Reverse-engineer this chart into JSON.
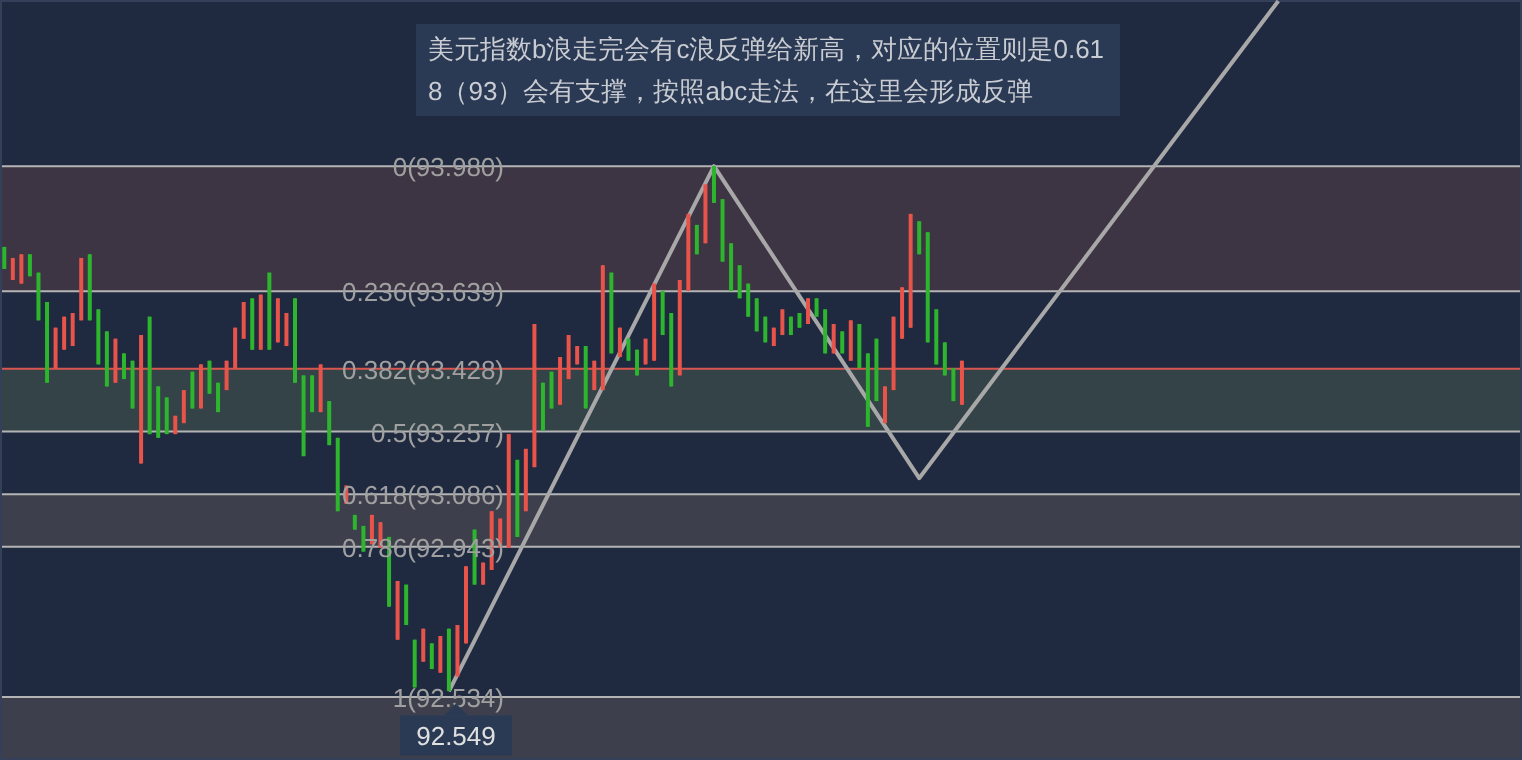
{
  "chart_data": {
    "type": "candlestick",
    "ylim": [
      92.365,
      94.43
    ],
    "categories": [
      null,
      null,
      null,
      null,
      null,
      null,
      null,
      null,
      null,
      null,
      null,
      null,
      null,
      null,
      null,
      null,
      null,
      null,
      null,
      null,
      null,
      null,
      null,
      null,
      null,
      null,
      null,
      null,
      null,
      null,
      null,
      null,
      null,
      null,
      null,
      null,
      null,
      null,
      null,
      null,
      null,
      null,
      null,
      null,
      null,
      null,
      null,
      null,
      null,
      null,
      null,
      null,
      null,
      null,
      null,
      null,
      null,
      null,
      null,
      null,
      null,
      null,
      null,
      null,
      null,
      null,
      null,
      null,
      null,
      null,
      null,
      null,
      null,
      null,
      null,
      null,
      null,
      null,
      null,
      null,
      null,
      null,
      null,
      null,
      null,
      null,
      null,
      null,
      null,
      null,
      null,
      null,
      null,
      null,
      null,
      null,
      null,
      null,
      null,
      null,
      null,
      null,
      null,
      null,
      null,
      null,
      null,
      null,
      null,
      null,
      null,
      null,
      null,
      null,
      null,
      null,
      null,
      null,
      null,
      null,
      null,
      null,
      null,
      null,
      null,
      null,
      null,
      null,
      null,
      null,
      null,
      null,
      null,
      null,
      null,
      null,
      null,
      null,
      null,
      null,
      null,
      null,
      null,
      null,
      null,
      null,
      null,
      null,
      null,
      null,
      null,
      null,
      null,
      null,
      null,
      null,
      null,
      null,
      null,
      null,
      null,
      null,
      null,
      null,
      null,
      null,
      null,
      null,
      null,
      null,
      null,
      null,
      null,
      null,
      null,
      null,
      null,
      null
    ],
    "ohlc": [
      [
        93.76,
        93.76,
        93.7,
        93.7
      ],
      [
        93.67,
        93.73,
        93.67,
        93.73
      ],
      [
        93.66,
        93.74,
        93.66,
        93.74
      ],
      [
        93.74,
        93.74,
        93.68,
        93.68
      ],
      [
        93.69,
        93.69,
        93.56,
        93.56
      ],
      [
        93.61,
        93.61,
        93.39,
        93.39
      ],
      [
        93.43,
        93.54,
        93.43,
        93.54
      ],
      [
        93.48,
        93.57,
        93.48,
        93.57
      ],
      [
        93.49,
        93.58,
        93.49,
        93.58
      ],
      [
        93.56,
        93.73,
        93.56,
        93.73
      ],
      [
        93.74,
        93.74,
        93.56,
        93.56
      ],
      [
        93.59,
        93.59,
        93.44,
        93.44
      ],
      [
        93.53,
        93.53,
        93.38,
        93.38
      ],
      [
        93.39,
        93.51,
        93.39,
        93.51
      ],
      [
        93.47,
        93.47,
        93.4,
        93.4
      ],
      [
        93.45,
        93.45,
        93.32,
        93.32
      ],
      [
        93.17,
        93.52,
        93.17,
        93.52
      ],
      [
        93.57,
        93.57,
        93.25,
        93.25
      ],
      [
        93.38,
        93.38,
        93.24,
        93.24
      ],
      [
        93.35,
        93.35,
        93.25,
        93.25
      ],
      [
        93.25,
        93.3,
        93.25,
        93.3
      ],
      [
        93.28,
        93.37,
        93.28,
        93.37
      ],
      [
        93.42,
        93.42,
        93.32,
        93.32
      ],
      [
        93.32,
        93.44,
        93.32,
        93.44
      ],
      [
        93.45,
        93.45,
        93.36,
        93.36
      ],
      [
        93.39,
        93.39,
        93.31,
        93.31
      ],
      [
        93.37,
        93.45,
        93.37,
        93.45
      ],
      [
        93.43,
        93.54,
        93.43,
        93.54
      ],
      [
        93.51,
        93.61,
        93.51,
        93.61
      ],
      [
        93.62,
        93.62,
        93.48,
        93.48
      ],
      [
        93.48,
        93.63,
        93.48,
        93.63
      ],
      [
        93.69,
        93.69,
        93.48,
        93.48
      ],
      [
        93.5,
        93.62,
        93.5,
        93.62
      ],
      [
        93.49,
        93.58,
        93.49,
        93.58
      ],
      [
        93.62,
        93.62,
        93.39,
        93.39
      ],
      [
        93.41,
        93.41,
        93.19,
        93.19
      ],
      [
        93.41,
        93.41,
        93.31,
        93.31
      ],
      [
        93.31,
        93.44,
        93.31,
        93.44
      ],
      [
        93.34,
        93.34,
        93.22,
        93.22
      ],
      [
        93.24,
        93.24,
        93.04,
        93.04
      ],
      [
        93.06,
        93.11,
        93.06,
        93.11
      ],
      [
        93.03,
        93.03,
        92.99,
        92.99
      ],
      [
        93.0,
        93.0,
        92.93,
        92.93
      ],
      [
        92.95,
        93.03,
        92.95,
        93.03
      ],
      [
        92.94,
        93.01,
        92.94,
        93.01
      ],
      [
        92.97,
        92.97,
        92.78,
        92.78
      ],
      [
        92.69,
        92.85,
        92.69,
        92.85
      ],
      [
        92.84,
        92.84,
        92.73,
        92.73
      ],
      [
        92.69,
        92.69,
        92.56,
        92.56
      ],
      [
        92.63,
        92.72,
        92.63,
        92.72
      ],
      [
        92.68,
        92.68,
        92.61,
        92.61
      ],
      [
        92.6,
        92.7,
        92.6,
        92.7
      ],
      [
        92.72,
        92.72,
        92.55,
        92.55
      ],
      [
        92.59,
        92.73,
        92.59,
        92.73
      ],
      [
        92.68,
        92.89,
        92.68,
        92.89
      ],
      [
        92.99,
        92.99,
        92.84,
        92.84
      ],
      [
        92.84,
        92.9,
        92.84,
        92.9
      ],
      [
        92.88,
        93.04,
        92.88,
        93.04
      ],
      [
        92.94,
        93.02,
        92.94,
        93.02
      ],
      [
        92.94,
        93.25,
        92.94,
        93.25
      ],
      [
        93.18,
        93.18,
        92.97,
        92.97
      ],
      [
        93.04,
        93.21,
        93.04,
        93.21
      ],
      [
        93.16,
        93.55,
        93.16,
        93.55
      ],
      [
        93.39,
        93.39,
        93.26,
        93.26
      ],
      [
        93.42,
        93.42,
        93.32,
        93.32
      ],
      [
        93.33,
        93.46,
        93.33,
        93.46
      ],
      [
        93.4,
        93.52,
        93.4,
        93.52
      ],
      [
        93.44,
        93.49,
        93.44,
        93.49
      ],
      [
        93.49,
        93.49,
        93.32,
        93.32
      ],
      [
        93.37,
        93.45,
        93.37,
        93.45
      ],
      [
        93.37,
        93.71,
        93.37,
        93.71
      ],
      [
        93.69,
        93.69,
        93.47,
        93.47
      ],
      [
        93.46,
        93.54,
        93.46,
        93.54
      ],
      [
        93.51,
        93.51,
        93.45,
        93.45
      ],
      [
        93.48,
        93.48,
        93.41,
        93.41
      ],
      [
        93.44,
        93.51,
        93.44,
        93.51
      ],
      [
        93.45,
        93.66,
        93.45,
        93.66
      ],
      [
        93.64,
        93.64,
        93.52,
        93.52
      ],
      [
        93.58,
        93.58,
        93.38,
        93.38
      ],
      [
        93.41,
        93.67,
        93.41,
        93.67
      ],
      [
        93.64,
        93.85,
        93.64,
        93.85
      ],
      [
        93.82,
        93.82,
        93.74,
        93.74
      ],
      [
        93.77,
        93.93,
        93.77,
        93.93
      ],
      [
        93.98,
        93.98,
        93.88,
        93.88
      ],
      [
        93.89,
        93.89,
        93.72,
        93.72
      ],
      [
        93.77,
        93.77,
        93.64,
        93.64
      ],
      [
        93.71,
        93.71,
        93.62,
        93.62
      ],
      [
        93.66,
        93.66,
        93.57,
        93.57
      ],
      [
        93.62,
        93.62,
        93.53,
        93.53
      ],
      [
        93.57,
        93.57,
        93.5,
        93.5
      ],
      [
        93.49,
        93.54,
        93.49,
        93.54
      ],
      [
        93.52,
        93.59,
        93.52,
        93.59
      ],
      [
        93.57,
        93.57,
        93.52,
        93.52
      ],
      [
        93.58,
        93.58,
        93.54,
        93.54
      ],
      [
        93.55,
        93.62,
        93.55,
        93.62
      ],
      [
        93.62,
        93.62,
        93.57,
        93.57
      ],
      [
        93.59,
        93.59,
        93.47,
        93.47
      ],
      [
        93.47,
        93.55,
        93.47,
        93.55
      ],
      [
        93.53,
        93.53,
        93.47,
        93.47
      ],
      [
        93.45,
        93.56,
        93.45,
        93.56
      ],
      [
        93.55,
        93.55,
        93.43,
        93.43
      ],
      [
        93.47,
        93.47,
        93.27,
        93.27
      ],
      [
        93.51,
        93.51,
        93.34,
        93.34
      ],
      [
        93.28,
        93.38,
        93.28,
        93.38
      ],
      [
        93.37,
        93.57,
        93.37,
        93.57
      ],
      [
        93.51,
        93.65,
        93.51,
        93.65
      ],
      [
        93.54,
        93.85,
        93.54,
        93.85
      ],
      [
        93.83,
        93.83,
        93.74,
        93.74
      ],
      [
        93.8,
        93.8,
        93.5,
        93.5
      ],
      [
        93.59,
        93.59,
        93.44,
        93.44
      ],
      [
        93.5,
        93.5,
        93.41,
        93.41
      ],
      [
        93.43,
        93.43,
        93.34,
        93.34
      ],
      [
        93.33,
        93.45,
        93.33,
        93.45
      ],
      null,
      null,
      null,
      null,
      null,
      null,
      null,
      null,
      null,
      null,
      null,
      null,
      null,
      null,
      null,
      null,
      null,
      null,
      null,
      null,
      null,
      null,
      null,
      null,
      null,
      null,
      null,
      null,
      null,
      null,
      null,
      null,
      null,
      null,
      null,
      null,
      null,
      null,
      null,
      null,
      null,
      null,
      null,
      null,
      null,
      null,
      null,
      null,
      null,
      null,
      null,
      null,
      null,
      null,
      null,
      null,
      null,
      null,
      null,
      null,
      null,
      null,
      null,
      null,
      null
    ],
    "series": [
      {
        "type": "line",
        "color": "#a8a8a8",
        "values": [
          null,
          null,
          null,
          null,
          null,
          null,
          null,
          null,
          null,
          null,
          null,
          null,
          null,
          null,
          null,
          null,
          null,
          null,
          null,
          null,
          null,
          null,
          null,
          null,
          null,
          null,
          null,
          null,
          null,
          null,
          null,
          null,
          null,
          null,
          null,
          null,
          null,
          null,
          null,
          null,
          null,
          null,
          null,
          null,
          null,
          null,
          null,
          null,
          null,
          null,
          null,
          null,
          92.549,
          null,
          null,
          null,
          null,
          null,
          null,
          null,
          null,
          null,
          null,
          null,
          null,
          null,
          null,
          null,
          null,
          null,
          null,
          null,
          null,
          null,
          null,
          null,
          null,
          null,
          null,
          null,
          null,
          null,
          null,
          93.98,
          null,
          null,
          null,
          null,
          null,
          null,
          null,
          null,
          null,
          null,
          null,
          null,
          null,
          null,
          null,
          null,
          null,
          null,
          null,
          null,
          null,
          null,
          null,
          93.13,
          null,
          null,
          null,
          null,
          null,
          null,
          null,
          null,
          null,
          null,
          null,
          null,
          null,
          null,
          null,
          null,
          null,
          null,
          null,
          null,
          null,
          null,
          null,
          null,
          null,
          null,
          null,
          null,
          null,
          null,
          null,
          null,
          null,
          null,
          null,
          null,
          null,
          null,
          null,
          null,
          null,
          94.43,
          null,
          null,
          null,
          null,
          null,
          null,
          null,
          null,
          null,
          null,
          null,
          null,
          null,
          null,
          null,
          null,
          null,
          null,
          null,
          null,
          null,
          null,
          null,
          null,
          null,
          null,
          null,
          null
        ]
      }
    ],
    "bands": [
      {
        "axis": "y",
        "from": 93.639,
        "to": 93.98,
        "color": "#3d3543"
      },
      {
        "axis": "y",
        "from": 93.257,
        "to": 93.428,
        "color": "#344348"
      },
      {
        "axis": "y",
        "from": 92.943,
        "to": 93.086,
        "color": "#3d404c"
      },
      {
        "axis": "y",
        "from": 92.365,
        "to": 92.534,
        "color": "#3d404c"
      }
    ],
    "ref_lines": [
      {
        "axis": "y",
        "value": 93.98,
        "label": "0(93.980)",
        "color": "#b4b4b4"
      },
      {
        "axis": "y",
        "value": 93.639,
        "label": "0.236(93.639)",
        "color": "#b4b4b4"
      },
      {
        "axis": "y",
        "value": 93.428,
        "label": "0.382(93.428)",
        "color": "#d8564f"
      },
      {
        "axis": "y",
        "value": 93.257,
        "label": "0.5(93.257)",
        "color": "#b4b4b4"
      },
      {
        "axis": "y",
        "value": 93.086,
        "label": "0.618(93.086)",
        "color": "#b4b4b4"
      },
      {
        "axis": "y",
        "value": 92.943,
        "label": "0.786(92.943)",
        "color": "#b4b4b4"
      },
      {
        "axis": "y",
        "value": 92.534,
        "label": "1(92.534)",
        "color": "#b4b4b4"
      }
    ],
    "annotations": [
      "美元指数b浪走完会有c浪反弹给新高，对应的位置则是0.618（93）会有支撑，按照abc走法，在这里会形成反弹",
      {
        "text": "92.549",
        "y": 92.549
      }
    ]
  }
}
